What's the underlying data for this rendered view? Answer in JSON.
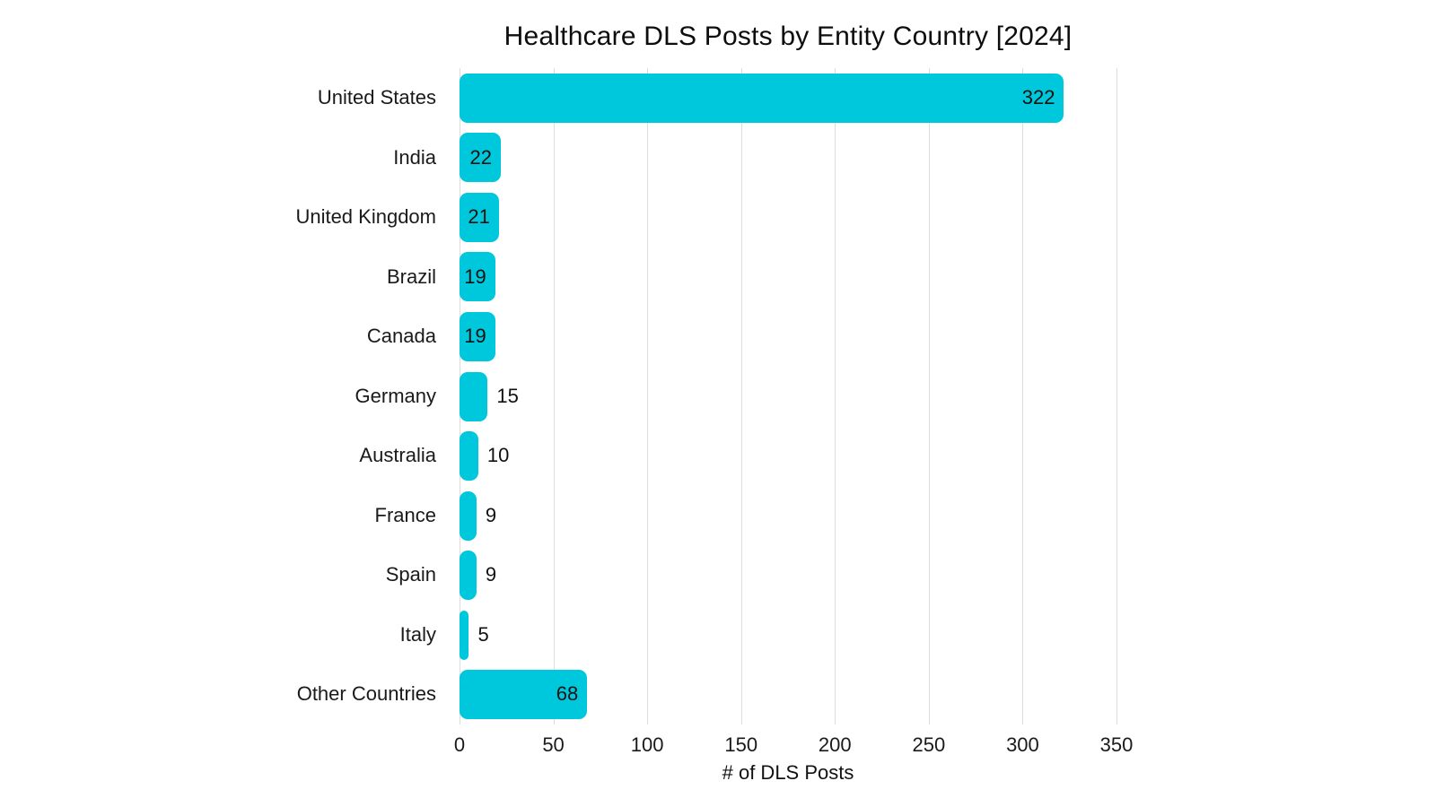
{
  "figure_title": "Healthcare DLS Posts by Entity Country [2024]",
  "chart_data": {
    "type": "bar",
    "orientation": "horizontal",
    "title": "Healthcare DLS Posts by Entity Country [2024]",
    "xlabel": "# of DLS Posts",
    "ylabel": "",
    "categories": [
      "United States",
      "India",
      "United Kingdom",
      "Brazil",
      "Canada",
      "Germany",
      "Australia",
      "France",
      "Spain",
      "Italy",
      "Other Countries"
    ],
    "values": [
      322,
      22,
      21,
      19,
      19,
      15,
      10,
      9,
      9,
      5,
      68
    ],
    "data_labels": [
      "322",
      "22",
      "21",
      "19",
      "19",
      "15",
      "10",
      "9",
      "9",
      "5",
      "68"
    ],
    "xlim": [
      0,
      350
    ],
    "xticks": [
      0,
      50,
      100,
      150,
      200,
      250,
      300,
      350
    ],
    "xtick_labels": [
      "0",
      "50",
      "100",
      "150",
      "200",
      "250",
      "300",
      "350"
    ],
    "grid": true,
    "legend_position": "none",
    "colors": {
      "bar": "#00c8dc",
      "text": "#111111",
      "grid": "#dcdcdc",
      "background": "#ffffff"
    }
  }
}
